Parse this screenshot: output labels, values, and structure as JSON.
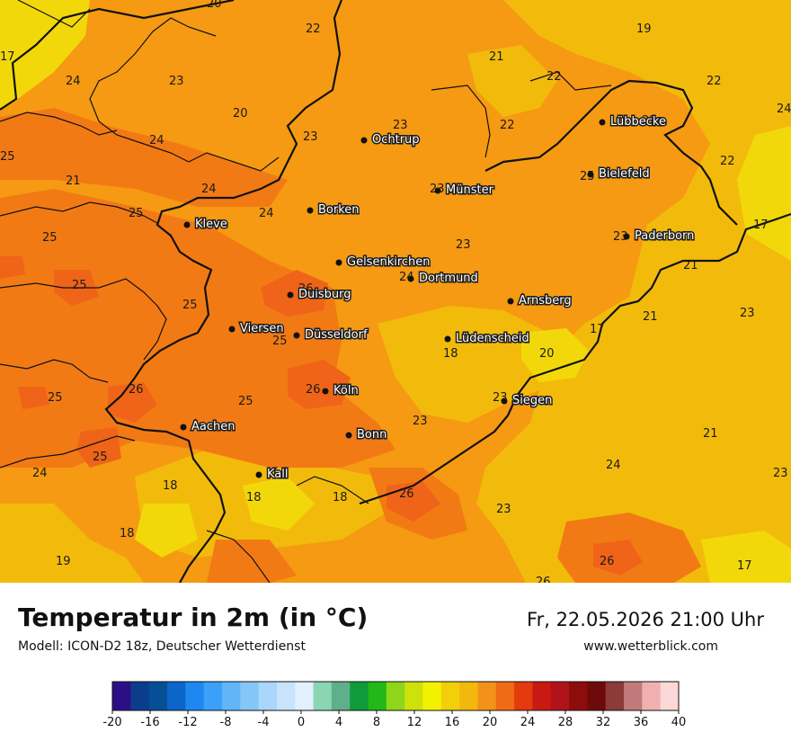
{
  "header": {
    "title": "Temperatur in 2m (in °C)",
    "model": "Modell: ICON-D2 18z, Deutscher Wetterdienst",
    "datetime": "Fr, 22.05.2026 21:00 Uhr",
    "website": "www.wetterblick.com"
  },
  "cities": [
    {
      "name": "Lübbecke"
    },
    {
      "name": "Ochtrup"
    },
    {
      "name": "Bielefeld"
    },
    {
      "name": "Münster"
    },
    {
      "name": "Kleve"
    },
    {
      "name": "Borken"
    },
    {
      "name": "Paderborn"
    },
    {
      "name": "Gelsenkirchen"
    },
    {
      "name": "Dortmund"
    },
    {
      "name": "Duisburg"
    },
    {
      "name": "Arnsberg"
    },
    {
      "name": "Viersen"
    },
    {
      "name": "Düsseldorf"
    },
    {
      "name": "Lüdenscheid"
    },
    {
      "name": "Köln"
    },
    {
      "name": "Siegen"
    },
    {
      "name": "Aachen"
    },
    {
      "name": "Bonn"
    },
    {
      "name": "Kall"
    }
  ],
  "temperature_labels": [
    "20",
    "19",
    "22",
    "17",
    "21",
    "22",
    "24",
    "23",
    "22",
    "24",
    "20",
    "23",
    "23",
    "22",
    "22",
    "25",
    "24",
    "21",
    "22",
    "25",
    "24",
    "24",
    "23",
    "25",
    "17",
    "23",
    "25",
    "21",
    "24",
    "23",
    "26",
    "25",
    "25",
    "21",
    "17",
    "23",
    "18",
    "20",
    "26",
    "25",
    "25",
    "26",
    "23",
    "25",
    "23",
    "21",
    "25",
    "23",
    "24",
    "24",
    "18",
    "18",
    "18",
    "26",
    "23",
    "18",
    "19",
    "26",
    "17",
    "26"
  ],
  "legend": {
    "tick_labels": [
      "-20",
      "-16",
      "-12",
      "-8",
      "-4",
      "0",
      "4",
      "8",
      "12",
      "16",
      "20",
      "24",
      "28",
      "32",
      "36",
      "40"
    ],
    "colors": [
      "#2c0f87",
      "#0b3d8c",
      "#064f97",
      "#0a66c8",
      "#1e88f0",
      "#3aa0f8",
      "#62b6f8",
      "#85c6f9",
      "#a9d6fa",
      "#c8e3fb",
      "#e2effc",
      "#8ad6b3",
      "#5eb08c",
      "#0f9a3b",
      "#22b81a",
      "#8fd61a",
      "#cde20d",
      "#f2f200",
      "#f2cf0a",
      "#f2b80b",
      "#f29218",
      "#f06b16",
      "#e33a0e",
      "#c81a12",
      "#b0141a",
      "#8e0c0c",
      "#6e0a0a",
      "#8c3a3a",
      "#c07a7a",
      "#f0b0b0",
      "#fcd8d8"
    ]
  },
  "map_colors": {
    "base": "#f59a12",
    "warm_zone": "#f27a14",
    "hot_spots": "#ef6418",
    "cool_zone": "#f2bb0b",
    "cold_spots": "#f2d80a",
    "border": "#111111"
  }
}
